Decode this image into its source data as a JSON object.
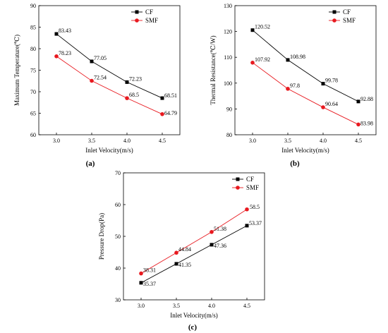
{
  "chart_data": [
    {
      "type": "line",
      "panel_label": "(a)",
      "title": "",
      "xlabel": "Inlet Velocity(m/s)",
      "ylabel": "Maximum Temperature(℃)",
      "xlim": [
        2.75,
        4.75
      ],
      "ylim": [
        60,
        90
      ],
      "x_ticks": [
        3.0,
        3.5,
        4.0,
        4.5
      ],
      "y_ticks": [
        60,
        65,
        70,
        75,
        80,
        85,
        90
      ],
      "x": [
        3.0,
        3.5,
        4.0,
        4.5
      ],
      "legend_position": "top-right",
      "grid": false,
      "series": [
        {
          "name": "CF",
          "values": [
            83.43,
            77.05,
            72.23,
            68.51
          ],
          "labels": [
            "83.43",
            "77.05",
            "72.23",
            "68.51"
          ],
          "color": "#000000",
          "marker": "square"
        },
        {
          "name": "SMF",
          "values": [
            78.23,
            72.54,
            68.5,
            64.79
          ],
          "labels": [
            "78.23",
            "72.54",
            "68.5",
            "64.79"
          ],
          "color": "#e8191f",
          "marker": "circle"
        }
      ]
    },
    {
      "type": "line",
      "panel_label": "(b)",
      "title": "",
      "xlabel": "Inlet Velocity(m/s)",
      "ylabel": "Thermal Resistance(℃/W)",
      "xlim": [
        2.75,
        4.75
      ],
      "ylim": [
        80,
        130
      ],
      "x_ticks": [
        3.0,
        3.5,
        4.0,
        4.5
      ],
      "y_ticks": [
        80,
        90,
        100,
        110,
        120,
        130
      ],
      "x": [
        3.0,
        3.5,
        4.0,
        4.5
      ],
      "legend_position": "top-right",
      "grid": false,
      "series": [
        {
          "name": "CF",
          "values": [
            120.52,
            108.98,
            99.78,
            92.88
          ],
          "labels": [
            "120.52",
            "108.98",
            "99.78",
            "92.88"
          ],
          "color": "#000000",
          "marker": "square"
        },
        {
          "name": "SMF",
          "values": [
            107.92,
            97.8,
            90.64,
            83.98
          ],
          "labels": [
            "107.92",
            "97.8",
            "90.64",
            "83.98"
          ],
          "color": "#e8191f",
          "marker": "circle"
        }
      ]
    },
    {
      "type": "line",
      "panel_label": "(c)",
      "title": "",
      "xlabel": "Inlet Velocity(m/s)",
      "ylabel": "Pressure Drop(Pa)",
      "xlim": [
        2.75,
        4.75
      ],
      "ylim": [
        30,
        70
      ],
      "x_ticks": [
        3.0,
        3.5,
        4.0,
        4.5
      ],
      "y_ticks": [
        30,
        40,
        50,
        60,
        70
      ],
      "x": [
        3.0,
        3.5,
        4.0,
        4.5
      ],
      "legend_position": "top-left",
      "grid": false,
      "series": [
        {
          "name": "CF",
          "values": [
            35.37,
            41.35,
            47.36,
            53.37
          ],
          "labels": [
            "35.37",
            "41.35",
            "47.36",
            "53.37"
          ],
          "color": "#000000",
          "marker": "square"
        },
        {
          "name": "SMF",
          "values": [
            38.31,
            44.84,
            51.38,
            58.5
          ],
          "labels": [
            "38.31",
            "44.84",
            "51.38",
            "58.5"
          ],
          "color": "#e8191f",
          "marker": "circle"
        }
      ]
    }
  ]
}
